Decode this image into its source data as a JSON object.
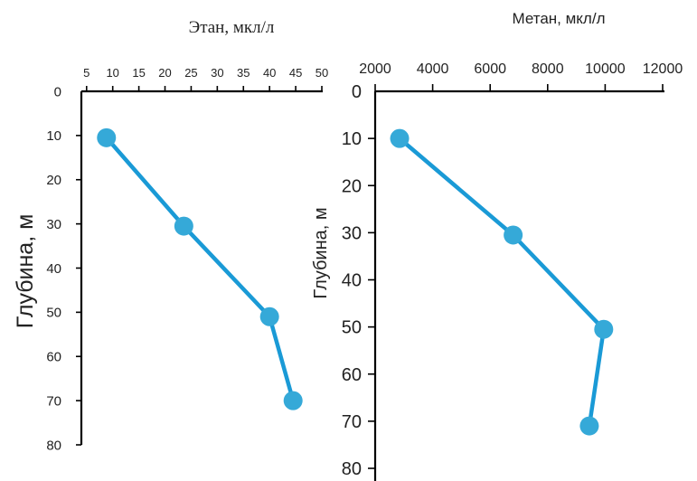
{
  "chart_data": [
    {
      "type": "line",
      "xlabel": "Этан, мкл/л",
      "ylabel": "Глубина, м",
      "xticks": [
        5,
        10,
        15,
        20,
        25,
        30,
        35,
        40,
        45,
        50
      ],
      "yticks": [
        0,
        10,
        20,
        30,
        40,
        50,
        60,
        70,
        80
      ],
      "xlim": [
        4,
        50
      ],
      "ylim": [
        0,
        80
      ],
      "x_axis_position": "top",
      "y_inverted": true,
      "grid": false,
      "series": [
        {
          "x": [
            8.8,
            23.6,
            40.0,
            44.5
          ],
          "y": [
            10.5,
            30.5,
            51,
            70
          ]
        }
      ],
      "colors": {
        "line": "#1a9ad6",
        "marker": "#35a9d8",
        "axis": "#000000"
      }
    },
    {
      "type": "line",
      "xlabel": "Метан, мкл/л",
      "ylabel": "Глубина, м",
      "xticks": [
        2000,
        4000,
        6000,
        8000,
        10000,
        12000
      ],
      "yticks": [
        0,
        10,
        20,
        30,
        40,
        50,
        60,
        70,
        80
      ],
      "xlim": [
        2000,
        12000
      ],
      "ylim": [
        0,
        80
      ],
      "x_axis_position": "top",
      "y_inverted": true,
      "grid": false,
      "series": [
        {
          "x": [
            2850,
            6800,
            9950,
            9450
          ],
          "y": [
            10,
            30.5,
            50.5,
            71
          ]
        }
      ],
      "colors": {
        "line": "#1a9ad6",
        "marker": "#35a9d8",
        "axis": "#000000"
      }
    }
  ]
}
